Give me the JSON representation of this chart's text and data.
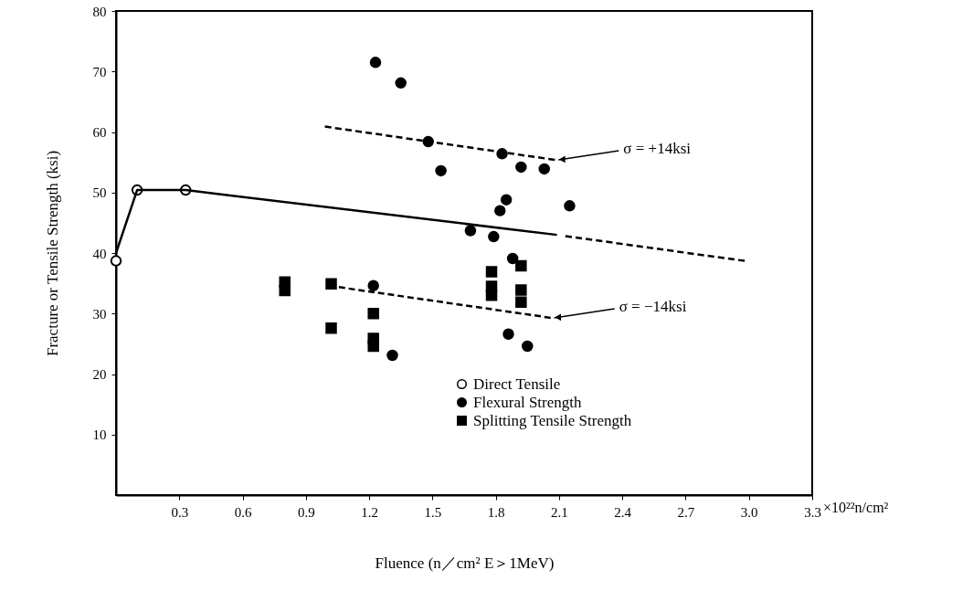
{
  "chart_data": {
    "type": "scatter",
    "xlabel": "Fluence (n／cm² E＞1MeV)",
    "ylabel": "Fracture or Tensile Strength (ksi)",
    "xlim": [
      0,
      3.3
    ],
    "xticks": [
      0.3,
      0.6,
      0.9,
      1.2,
      1.5,
      1.8,
      2.1,
      2.4,
      2.7,
      {
        "value": 3.0,
        "label": "3.0"
      },
      3.3
    ],
    "ylim": [
      0,
      80
    ],
    "yticks": [
      10,
      20,
      30,
      40,
      50,
      60,
      70,
      80
    ],
    "grid": false,
    "legend": "bottom",
    "series": [
      {
        "name": "Direct Tensile",
        "marker": "circle",
        "color": "#ffffff",
        "x": [
          0,
          0.1,
          0.33
        ],
        "values": [
          38.7,
          50.4,
          50.4
        ]
      },
      {
        "name": "Flexural Strength",
        "marker": "circle",
        "color": "#000000",
        "x": [
          1.23,
          1.35,
          1.48,
          1.54,
          1.83,
          1.92,
          2.03,
          1.85,
          1.82,
          2.15,
          1.68,
          1.79,
          1.88,
          1.22,
          1.31,
          1.86,
          1.95
        ],
        "values": [
          71.5,
          68.1,
          58.4,
          53.6,
          56.4,
          54.2,
          53.9,
          48.8,
          47.0,
          47.8,
          43.7,
          42.7,
          39.1,
          34.6,
          23.1,
          26.6,
          24.6
        ]
      },
      {
        "name": "Splitting Tensile Strength",
        "marker": "square",
        "color": "#000000",
        "x": [
          0.8,
          0.8,
          1.02,
          1.02,
          1.22,
          1.22,
          1.22,
          1.78,
          1.78,
          1.78,
          1.92,
          1.92,
          1.92
        ],
        "values": [
          35.2,
          33.8,
          34.9,
          27.6,
          30.0,
          25.9,
          24.6,
          36.9,
          34.5,
          33.0,
          37.9,
          33.9,
          31.9
        ]
      },
      {
        "type": "line",
        "line_style": "solid",
        "color": "#000000",
        "x": [
          0,
          0.1,
          0.33,
          2.09
        ],
        "values": [
          40,
          50.4,
          50.4,
          43
        ]
      },
      {
        "type": "line",
        "line_style": "dashed",
        "color": "#000000",
        "x": [
          2.13,
          2.98
        ],
        "values": [
          42.8,
          38.7
        ]
      },
      {
        "type": "line",
        "line_style": "dashed",
        "color": "#000000",
        "x": [
          0.99,
          2.08
        ],
        "values": [
          60.9,
          55.4
        ]
      },
      {
        "type": "line",
        "line_style": "dashed",
        "color": "#000000",
        "x": [
          1.01,
          2.06
        ],
        "values": [
          34.6,
          29.3
        ]
      }
    ],
    "annotations": [
      {
        "text": "σ = +14ksi",
        "x": 2.08,
        "y": 55.4
      },
      {
        "text": "σ = −14ksi",
        "x": 2.06,
        "y": 29.3
      },
      "×10²²n/cm²"
    ]
  }
}
